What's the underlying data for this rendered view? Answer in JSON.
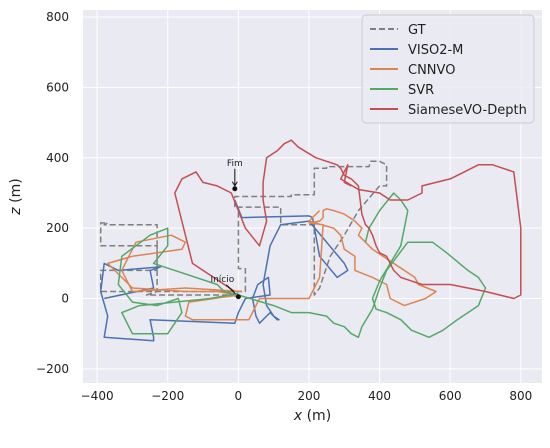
{
  "chart_data": {
    "type": "line",
    "xlabel": "x (m)",
    "ylabel": "z (m)",
    "xlim": [
      -440,
      860
    ],
    "ylim": [
      -240,
      820
    ],
    "xticks": [
      -400,
      -200,
      0,
      200,
      400,
      600,
      800
    ],
    "yticks": [
      -200,
      0,
      200,
      400,
      600,
      800
    ],
    "grid": true,
    "legend_position": "top-right",
    "annotations": [
      {
        "text": "Fim",
        "x": -10,
        "y": 312
      },
      {
        "text": "Início",
        "x": 0,
        "y": 5
      }
    ],
    "series": [
      {
        "name": "GT",
        "color": "#7f7f7f",
        "dash": true,
        "x": [
          -10,
          -10,
          150,
          150,
          215,
          215,
          250,
          250,
          370,
          375,
          400,
          420,
          420,
          400,
          340,
          300,
          260,
          240,
          230,
          215,
          215,
          120,
          120,
          0,
          0,
          20,
          20,
          -390,
          -390,
          -230,
          -230,
          -380,
          -370,
          -390,
          -390,
          -230,
          -230,
          -260,
          -20,
          0
        ],
        "y": [
          260,
          290,
          290,
          295,
          295,
          370,
          370,
          375,
          375,
          390,
          390,
          380,
          320,
          320,
          250,
          180,
          120,
          60,
          30,
          10,
          210,
          210,
          260,
          260,
          85,
          85,
          20,
          20,
          80,
          80,
          210,
          210,
          215,
          215,
          150,
          150,
          20,
          10,
          10,
          5
        ]
      },
      {
        "name": "VISO2-M",
        "color": "#4c72b0",
        "dash": false,
        "x": [
          -10,
          10,
          200,
          210,
          230,
          280,
          310,
          300,
          200,
          120,
          90,
          70,
          80,
          100,
          115,
          110,
          90,
          60,
          50,
          40,
          55,
          85,
          90,
          20,
          0,
          -10,
          -250,
          -240,
          -240,
          -380,
          -370,
          -390,
          -380,
          -340,
          -220,
          -250,
          -240,
          -380
        ],
        "y": [
          280,
          230,
          235,
          230,
          120,
          60,
          80,
          100,
          220,
          210,
          150,
          40,
          -20,
          -50,
          -60,
          -60,
          -40,
          -70,
          -50,
          0,
          40,
          60,
          10,
          0,
          -40,
          -70,
          -60,
          -110,
          -120,
          -110,
          -50,
          20,
          100,
          80,
          90,
          80,
          30,
          0
        ]
      },
      {
        "name": "CNNVO",
        "color": "#dd8452",
        "dash": false,
        "x": [
          10,
          -150,
          -300,
          -330,
          -290,
          -190,
          -150,
          -160,
          -300,
          -370,
          -300,
          -150,
          -60,
          0,
          -140,
          -150,
          -130,
          30,
          50,
          60,
          200,
          230,
          240,
          200,
          230,
          240,
          240,
          250,
          270,
          300,
          330,
          350,
          340,
          360,
          380,
          440,
          500,
          510,
          560,
          530,
          470,
          430,
          420,
          380,
          330,
          330,
          300,
          290,
          270,
          200,
          210,
          230
        ],
        "y": [
          20,
          30,
          20,
          80,
          160,
          180,
          160,
          140,
          120,
          100,
          30,
          20,
          20,
          10,
          -10,
          -50,
          -60,
          -60,
          -20,
          0,
          0,
          60,
          210,
          215,
          220,
          230,
          250,
          255,
          250,
          240,
          220,
          200,
          180,
          160,
          140,
          100,
          60,
          40,
          20,
          0,
          -20,
          0,
          40,
          60,
          80,
          120,
          140,
          180,
          200,
          220,
          230,
          250
        ]
      },
      {
        "name": "SVR",
        "color": "#55a868",
        "dash": false,
        "x": [
          0,
          -80,
          -180,
          -280,
          -330,
          -300,
          -200,
          -160,
          -170,
          -230,
          -300,
          -340,
          -330,
          -250,
          -200,
          -200,
          -240,
          -180,
          -60,
          -40,
          0,
          100,
          150,
          200,
          250,
          270,
          300,
          320,
          340,
          350,
          380,
          400,
          420,
          450,
          480,
          550,
          590,
          650,
          680,
          700,
          680,
          620,
          580,
          540,
          490,
          460,
          420,
          390,
          380,
          400,
          430,
          460,
          470,
          480,
          460,
          440,
          400,
          370,
          360
        ],
        "y": [
          15,
          0,
          -10,
          -20,
          -40,
          -100,
          -100,
          -40,
          0,
          -20,
          -10,
          40,
          120,
          180,
          200,
          150,
          100,
          80,
          40,
          20,
          10,
          -20,
          -40,
          -40,
          -50,
          -70,
          -80,
          -100,
          -110,
          -80,
          -30,
          30,
          80,
          120,
          160,
          160,
          130,
          80,
          60,
          30,
          -20,
          -60,
          -90,
          -110,
          -90,
          -60,
          -40,
          -30,
          0,
          50,
          100,
          150,
          200,
          250,
          280,
          300,
          250,
          200,
          160
        ]
      },
      {
        "name": "SiameseVO-Depth",
        "color": "#c44e52",
        "dash": false,
        "x": [
          -10,
          -130,
          -180,
          -160,
          -120,
          -100,
          -60,
          -20,
          20,
          60,
          80,
          70,
          70,
          80,
          110,
          130,
          150,
          170,
          220,
          280,
          290,
          300,
          320,
          340,
          350,
          360,
          370,
          380,
          390,
          400,
          420,
          440,
          460,
          520,
          600,
          700,
          780,
          800,
          800,
          780,
          720,
          680,
          640,
          600,
          560,
          520,
          520,
          480,
          430,
          400,
          340,
          290,
          310,
          300,
          320
        ],
        "y": [
          20,
          100,
          300,
          340,
          360,
          330,
          320,
          300,
          200,
          150,
          220,
          280,
          330,
          400,
          420,
          440,
          450,
          430,
          400,
          380,
          370,
          350,
          340,
          320,
          240,
          210,
          200,
          180,
          150,
          130,
          120,
          80,
          60,
          40,
          40,
          20,
          0,
          10,
          200,
          360,
          380,
          380,
          360,
          340,
          330,
          320,
          300,
          280,
          280,
          300,
          310,
          340,
          380,
          330,
          320
        ]
      }
    ]
  }
}
